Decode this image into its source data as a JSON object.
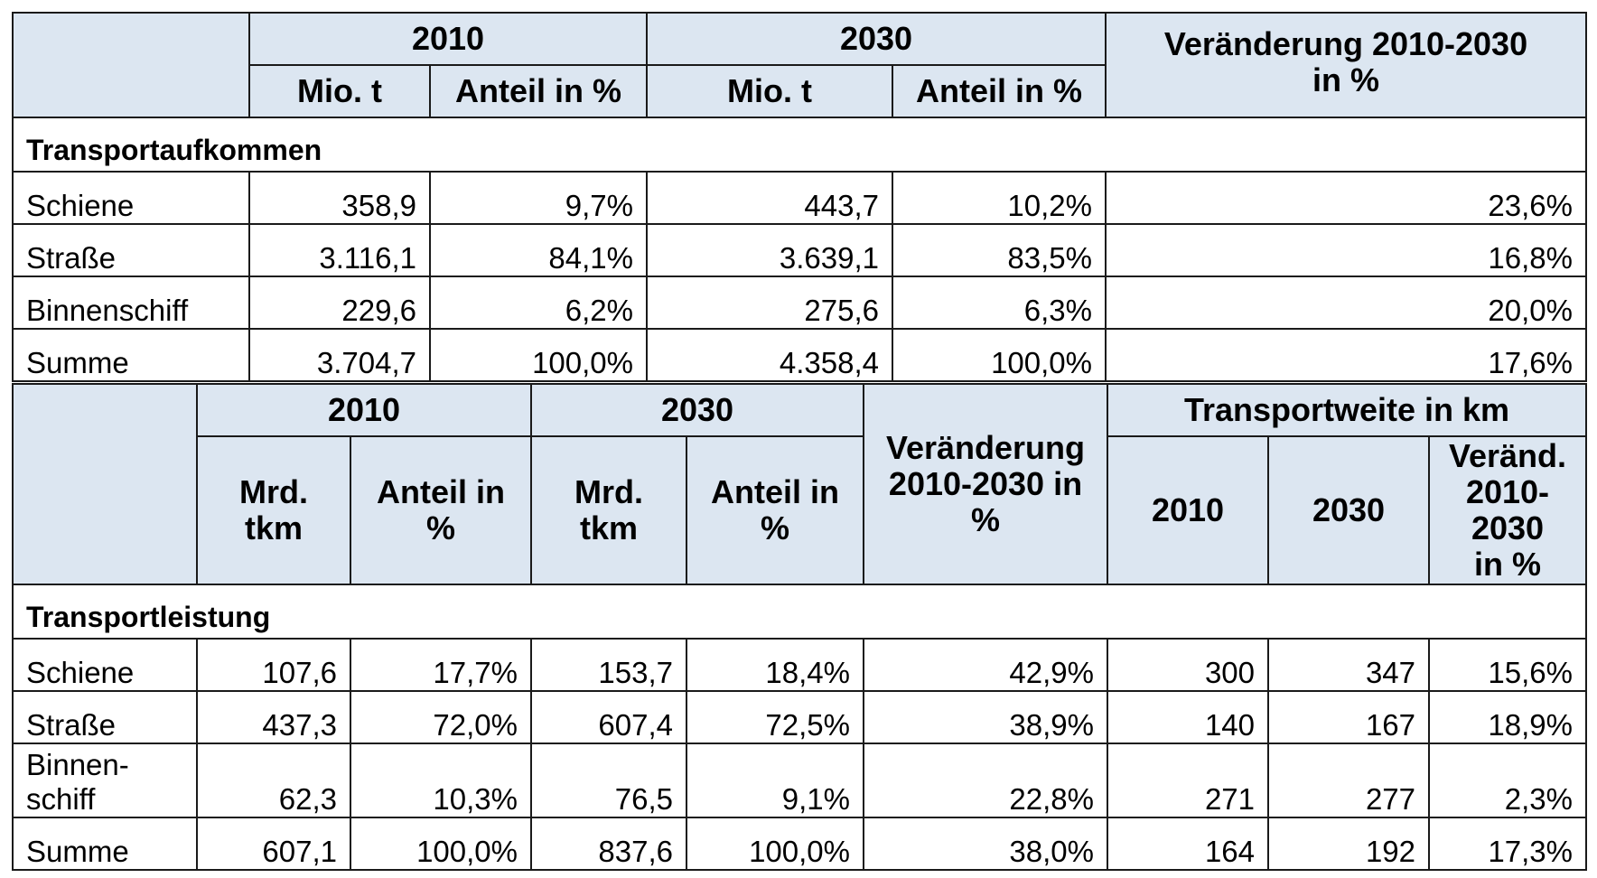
{
  "transportaufkommen": {
    "header": {
      "year1": "2010",
      "year2": "2030",
      "sub1": "Mio. t",
      "sub2": "Anteil in %",
      "sub3": "Mio. t",
      "sub4": "Anteil in %",
      "change_line1": "Veränderung 2010-2030",
      "change_line2": "in %"
    },
    "section_title": "Transportaufkommen",
    "rows": [
      {
        "label": "Schiene",
        "mio_2010": "358,9",
        "anteil_2010": "9,7%",
        "mio_2030": "443,7",
        "anteil_2030": "10,2%",
        "change": "23,6%"
      },
      {
        "label": "Straße",
        "mio_2010": "3.116,1",
        "anteil_2010": "84,1%",
        "mio_2030": "3.639,1",
        "anteil_2030": "83,5%",
        "change": "16,8%"
      },
      {
        "label": "Binnenschiff",
        "mio_2010": "229,6",
        "anteil_2010": "6,2%",
        "mio_2030": "275,6",
        "anteil_2030": "6,3%",
        "change": "20,0%"
      },
      {
        "label": "Summe",
        "mio_2010": "3.704,7",
        "anteil_2010": "100,0%",
        "mio_2030": "4.358,4",
        "anteil_2030": "100,0%",
        "change": "17,6%"
      }
    ]
  },
  "transportleistung": {
    "header": {
      "year1": "2010",
      "year2": "2030",
      "sub1_line1": "Mrd.",
      "sub1_line2": "tkm",
      "sub2_line1": "Anteil in",
      "sub2_line2": "%",
      "sub3_line1": "Mrd.",
      "sub3_line2": "tkm",
      "sub4_line1": "Anteil in",
      "sub4_line2": "%",
      "change_line1": "Veränderung",
      "change_line2": "2010-2030 in",
      "change_line3": "%",
      "weite": "Transportweite in km",
      "weite_2010": "2010",
      "weite_2030": "2030",
      "weite_change_line1": "Veränd.",
      "weite_change_line2": "2010-",
      "weite_change_line3": "2030",
      "weite_change_line4": "in %"
    },
    "section_title": "Transportleistung",
    "rows": [
      {
        "label_line1": "Schiene",
        "label_line2": "",
        "mrd_2010": "107,6",
        "anteil_2010": "17,7%",
        "mrd_2030": "153,7",
        "anteil_2030": "18,4%",
        "change": "42,9%",
        "km_2010": "300",
        "km_2030": "347",
        "km_change": "15,6%"
      },
      {
        "label_line1": "Straße",
        "label_line2": "",
        "mrd_2010": "437,3",
        "anteil_2010": "72,0%",
        "mrd_2030": "607,4",
        "anteil_2030": "72,5%",
        "change": "38,9%",
        "km_2010": "140",
        "km_2030": "167",
        "km_change": "18,9%"
      },
      {
        "label_line1": "Binnen-",
        "label_line2": "schiff",
        "mrd_2010": "62,3",
        "anteil_2010": "10,3%",
        "mrd_2030": "76,5",
        "anteil_2030": "9,1%",
        "change": "22,8%",
        "km_2010": "271",
        "km_2030": "277",
        "km_change": "2,3%"
      },
      {
        "label_line1": "Summe",
        "label_line2": "",
        "mrd_2010": "607,1",
        "anteil_2010": "100,0%",
        "mrd_2030": "837,6",
        "anteil_2030": "100,0%",
        "change": "38,0%",
        "km_2010": "164",
        "km_2030": "192",
        "km_change": "17,3%"
      }
    ]
  }
}
